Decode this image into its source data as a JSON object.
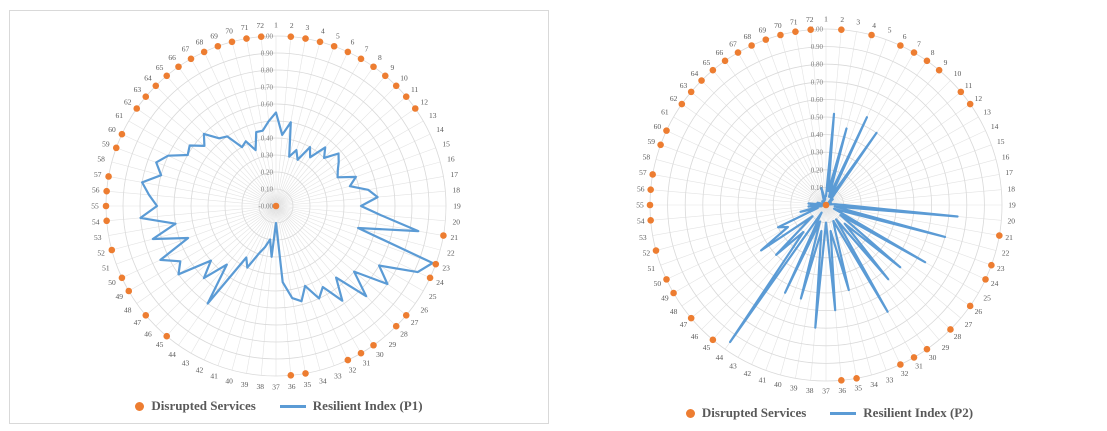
{
  "chart_data": [
    {
      "type": "radar",
      "categories": [
        "1",
        "2",
        "3",
        "4",
        "5",
        "6",
        "7",
        "8",
        "9",
        "10",
        "11",
        "12",
        "13",
        "14",
        "15",
        "16",
        "17",
        "18",
        "19",
        "20",
        "21",
        "22",
        "23",
        "24",
        "25",
        "26",
        "27",
        "28",
        "29",
        "30",
        "31",
        "32",
        "33",
        "34",
        "35",
        "36",
        "37",
        "38",
        "39",
        "40",
        "41",
        "42",
        "43",
        "44",
        "45",
        "46",
        "47",
        "48",
        "49",
        "50",
        "51",
        "52",
        "53",
        "54",
        "55",
        "56",
        "57",
        "58",
        "59",
        "60",
        "61",
        "62",
        "63",
        "64",
        "65",
        "66",
        "67",
        "68",
        "69",
        "70",
        "71",
        "72"
      ],
      "radial_ticks": [
        "-0.00",
        "0.10",
        "0.20",
        "0.30",
        "0.40",
        "0.50",
        "0.60",
        "0.70",
        "0.80",
        "0.90",
        "1.00"
      ],
      "tick_labels_shown": [
        "-0.00",
        "0.10",
        "0.20",
        "0.30",
        "0.40",
        "0.60",
        "0.70",
        "0.80",
        "0.90",
        "1.00"
      ],
      "rlim": [
        0,
        1
      ],
      "grid": true,
      "legend": "bottom",
      "series": [
        {
          "name": "Disrupted Services",
          "kind": "markers",
          "color": "#ED7D31",
          "values": [
            null,
            1,
            1,
            1,
            1,
            1,
            1,
            1,
            1,
            1,
            1,
            1,
            null,
            null,
            null,
            null,
            null,
            null,
            null,
            null,
            1,
            null,
            1,
            1,
            null,
            null,
            1,
            1,
            null,
            1,
            1,
            1,
            null,
            null,
            1,
            1,
            null,
            null,
            null,
            null,
            null,
            null,
            null,
            null,
            1,
            null,
            1,
            null,
            1,
            1,
            null,
            1,
            null,
            1,
            1,
            1,
            1,
            null,
            1,
            1,
            null,
            1,
            1,
            1,
            1,
            1,
            1,
            1,
            1,
            1,
            1,
            1
          ]
        },
        {
          "name": "Resilient Index (P1)",
          "kind": "line",
          "color": "#5B9BD5",
          "values": [
            0.55,
            0.42,
            0.5,
            0.3,
            0.35,
            0.3,
            0.4,
            0.35,
            0.45,
            0.4,
            0.48,
            0.45,
            0.42,
            0.4,
            0.5,
            0.45,
            0.55,
            0.6,
            0.5,
            0.62,
            0.85,
            0.5,
            0.98,
            0.92,
            0.7,
            0.8,
            0.6,
            0.75,
            0.55,
            0.68,
            0.55,
            0.6,
            0.5,
            0.58,
            0.55,
            0.45,
            0.1,
            0.3,
            0.2,
            0.25,
            0.3,
            0.4,
            0.35,
            0.7,
            0.45,
            0.6,
            0.5,
            0.7,
            0.65,
            0.75,
            0.55,
            0.75,
            0.6,
            0.8,
            0.7,
            0.75,
            0.8,
            0.7,
            0.75,
            0.7,
            0.6,
            0.62,
            0.55,
            0.6,
            0.52,
            0.5,
            0.4,
            0.42,
            0.35,
            0.45,
            0.45,
            0.5
          ]
        }
      ]
    },
    {
      "type": "radar",
      "categories": [
        "1",
        "2",
        "3",
        "4",
        "5",
        "6",
        "7",
        "8",
        "9",
        "10",
        "11",
        "12",
        "13",
        "14",
        "15",
        "16",
        "17",
        "18",
        "19",
        "20",
        "21",
        "22",
        "23",
        "24",
        "25",
        "26",
        "27",
        "28",
        "29",
        "30",
        "31",
        "32",
        "33",
        "34",
        "35",
        "36",
        "37",
        "38",
        "39",
        "40",
        "41",
        "42",
        "43",
        "44",
        "45",
        "46",
        "47",
        "48",
        "49",
        "50",
        "51",
        "52",
        "53",
        "54",
        "55",
        "56",
        "57",
        "58",
        "59",
        "60",
        "61",
        "62",
        "63",
        "64",
        "65",
        "66",
        "67",
        "68",
        "69",
        "70",
        "71",
        "72"
      ],
      "radial_ticks": [
        "0.00",
        "0.10",
        "0.20",
        "0.30",
        "0.40",
        "0.50",
        "0.60",
        "0.70",
        "0.80",
        "0.90",
        "1.00"
      ],
      "tick_labels_shown": [
        "0.00",
        "0.10",
        "0.20",
        "0.30",
        "0.40",
        "0.50",
        "0.60",
        "0.70",
        "0.80",
        "0.90",
        "1.00"
      ],
      "rlim": [
        0,
        1
      ],
      "grid": true,
      "legend": "bottom",
      "series": [
        {
          "name": "Disrupted Services",
          "kind": "markers",
          "color": "#ED7D31",
          "values": [
            null,
            1,
            null,
            1,
            null,
            1,
            1,
            1,
            1,
            null,
            1,
            1,
            null,
            null,
            null,
            null,
            null,
            null,
            null,
            null,
            1,
            null,
            1,
            1,
            null,
            1,
            null,
            1,
            null,
            1,
            1,
            1,
            null,
            null,
            1,
            1,
            null,
            null,
            null,
            null,
            null,
            null,
            null,
            null,
            1,
            null,
            1,
            null,
            1,
            1,
            null,
            1,
            null,
            1,
            1,
            1,
            1,
            null,
            1,
            1,
            null,
            1,
            1,
            1,
            1,
            1,
            1,
            1,
            1,
            1,
            1,
            1
          ]
        },
        {
          "name": "Resilient Index (P2)",
          "kind": "line",
          "color": "#5B9BD5",
          "values": [
            0.05,
            0.52,
            0.08,
            0.45,
            0.05,
            0.55,
            0.05,
            0.5,
            0.05,
            0.02,
            0.05,
            0.02,
            0.02,
            0.03,
            0.02,
            0.03,
            0.02,
            0.05,
            0.1,
            0.75,
            0.05,
            0.7,
            0.1,
            0.05,
            0.65,
            0.1,
            0.55,
            0.15,
            0.55,
            0.1,
            0.7,
            0.1,
            0.15,
            0.5,
            0.15,
            0.6,
            0.1,
            0.7,
            0.15,
            0.55,
            0.1,
            0.55,
            0.05,
            0.95,
            0.2,
            0.4,
            0.1,
            0.45,
            0.25,
            0.3,
            0.05,
            0.15,
            0.02,
            0.1,
            0.05,
            0.1,
            0.02,
            0.05,
            0.02,
            0.02,
            0.02,
            0.02,
            0.02,
            0.03,
            0.02,
            0.02,
            0.02,
            0.03,
            0.05,
            0.1,
            0.03,
            0.05
          ]
        }
      ]
    }
  ]
}
